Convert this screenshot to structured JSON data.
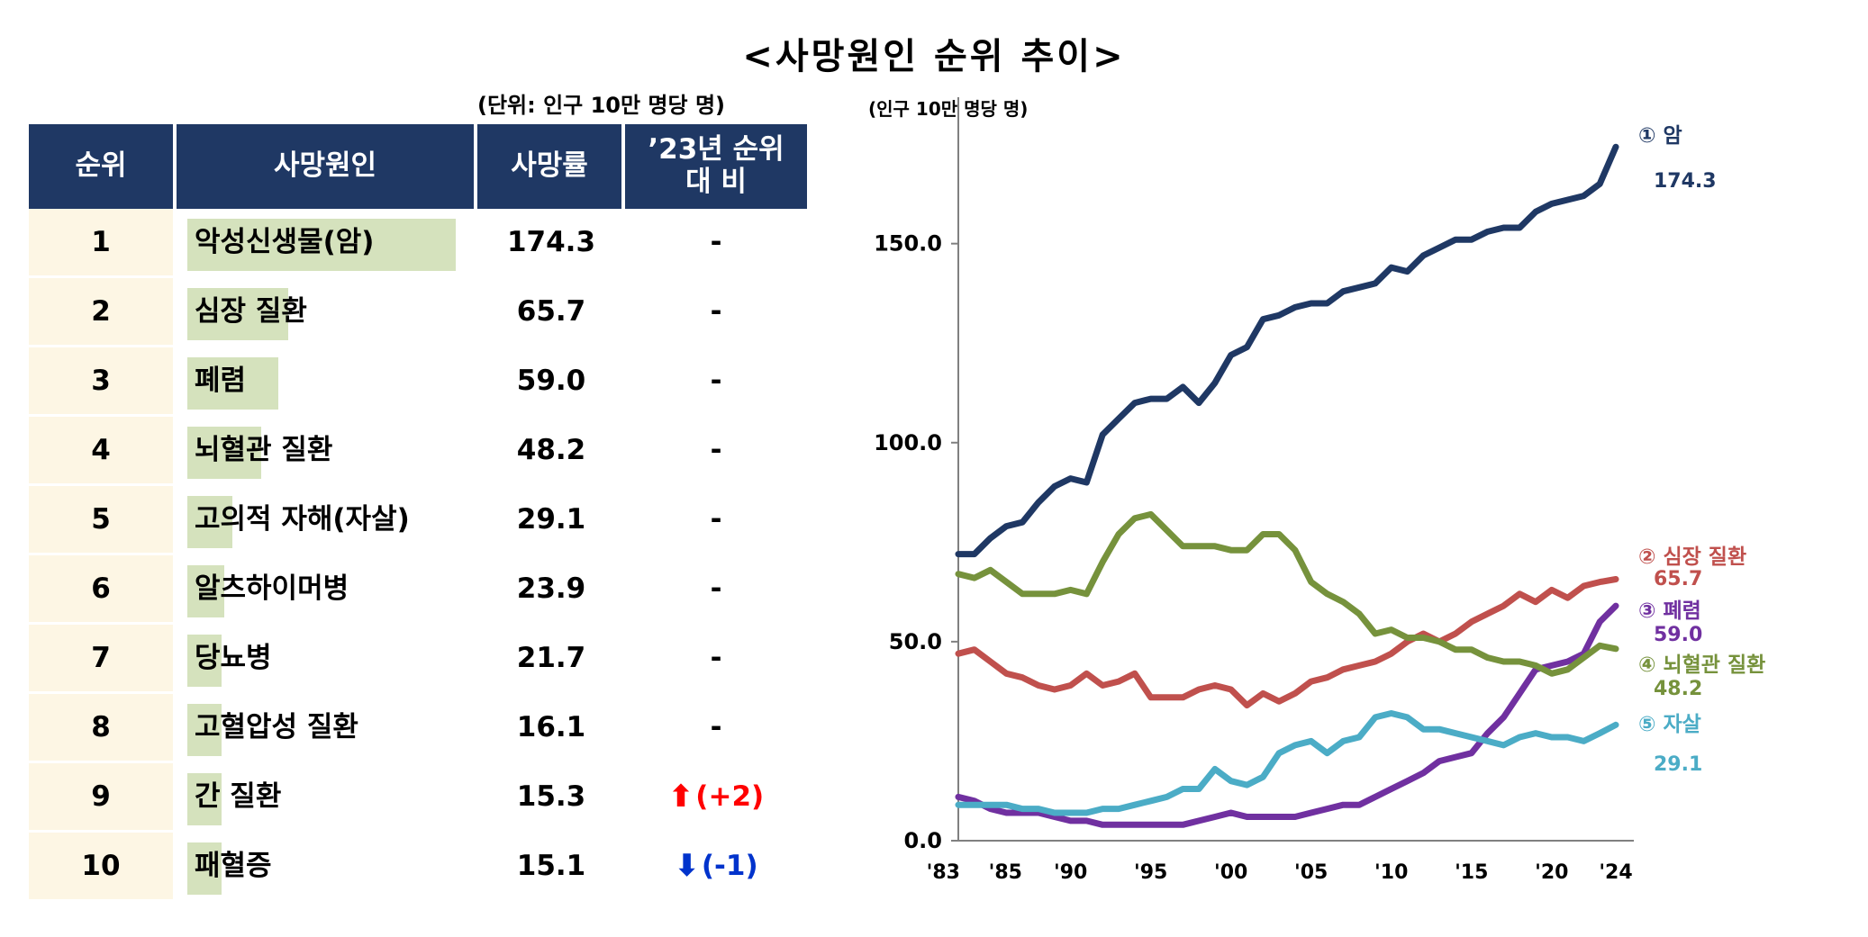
{
  "title": "<사망원인 순위 추이>",
  "table": {
    "unit_note": "(단위: 인구 10만 명당 명)",
    "headers": {
      "rank": "순위",
      "cause": "사망원인",
      "rate": "사망률",
      "compare_line1": "’23년 순위",
      "compare_line2": "대 비"
    },
    "max_rate": 174.3,
    "rows": [
      {
        "rank": "1",
        "cause": "악성신생물(암)",
        "rate": "174.3",
        "rate_value": 174.3,
        "change": "-",
        "direction": "none"
      },
      {
        "rank": "2",
        "cause": "심장 질환",
        "rate": "65.7",
        "rate_value": 65.7,
        "change": "-",
        "direction": "none"
      },
      {
        "rank": "3",
        "cause": "폐렴",
        "rate": "59.0",
        "rate_value": 59.0,
        "change": "-",
        "direction": "none"
      },
      {
        "rank": "4",
        "cause": "뇌혈관 질환",
        "rate": "48.2",
        "rate_value": 48.2,
        "change": "-",
        "direction": "none"
      },
      {
        "rank": "5",
        "cause": "고의적 자해(자살)",
        "rate": "29.1",
        "rate_value": 29.1,
        "change": "-",
        "direction": "none"
      },
      {
        "rank": "6",
        "cause": "알츠하이머병",
        "rate": "23.9",
        "rate_value": 23.9,
        "change": "-",
        "direction": "none"
      },
      {
        "rank": "7",
        "cause": "당뇨병",
        "rate": "21.7",
        "rate_value": 21.7,
        "change": "-",
        "direction": "none"
      },
      {
        "rank": "8",
        "cause": "고혈압성 질환",
        "rate": "16.1",
        "rate_value": 16.1,
        "change": "-",
        "direction": "none"
      },
      {
        "rank": "9",
        "cause": "간 질환",
        "rate": "15.3",
        "rate_value": 15.3,
        "change": "(+2)",
        "direction": "up"
      },
      {
        "rank": "10",
        "cause": "패혈증",
        "rate": "15.1",
        "rate_value": 15.1,
        "change": "(-1)",
        "direction": "down"
      }
    ]
  },
  "chart_data": {
    "type": "line",
    "title": "<사망원인 순위 추이>",
    "ylabel": "(인구 10만 명당 명)",
    "xlabel": "",
    "ylim": [
      0,
      180
    ],
    "xlim": [
      1983,
      2024
    ],
    "y_ticks": [
      0,
      50,
      100,
      150
    ],
    "y_tick_labels": [
      "0.0",
      "50.0",
      "100.0",
      "150.0"
    ],
    "x_ticks": [
      1983,
      1985,
      1990,
      1995,
      2000,
      2005,
      2010,
      2015,
      2020,
      2024
    ],
    "x_tick_labels": [
      "'83",
      "'85",
      "'90",
      "'95",
      "'00",
      "'05",
      "'10",
      "'15",
      "'20",
      "'24"
    ],
    "x": [
      1983,
      1984,
      1985,
      1986,
      1987,
      1988,
      1989,
      1990,
      1991,
      1992,
      1993,
      1994,
      1995,
      1996,
      1997,
      1998,
      1999,
      2000,
      2001,
      2002,
      2003,
      2004,
      2005,
      2006,
      2007,
      2008,
      2009,
      2010,
      2011,
      2012,
      2013,
      2014,
      2015,
      2016,
      2017,
      2018,
      2019,
      2020,
      2021,
      2022,
      2023,
      2024
    ],
    "series": [
      {
        "name": "① 암",
        "value_label": "174.3",
        "color": "#1f3864",
        "values": [
          72,
          72,
          76,
          79,
          80,
          85,
          89,
          91,
          90,
          102,
          106,
          110,
          111,
          111,
          114,
          110,
          115,
          122,
          124,
          131,
          132,
          134,
          135,
          135,
          138,
          139,
          140,
          144,
          143,
          147,
          149,
          151,
          151,
          153,
          154,
          154,
          158,
          160,
          161,
          162,
          165,
          174.3
        ]
      },
      {
        "name": "② 심장 질환",
        "value_label": "65.7",
        "color": "#c0504d",
        "values": [
          47,
          48,
          45,
          42,
          41,
          39,
          38,
          39,
          42,
          39,
          40,
          42,
          36,
          36,
          36,
          38,
          39,
          38,
          34,
          37,
          35,
          37,
          40,
          41,
          43,
          44,
          45,
          47,
          50,
          52,
          50,
          52,
          55,
          57,
          59,
          62,
          60,
          63,
          61,
          64,
          65,
          65.7
        ]
      },
      {
        "name": "③ 폐렴",
        "value_label": "59.0",
        "color": "#7030a0",
        "values": [
          11,
          10,
          8,
          7,
          7,
          7,
          6,
          5,
          5,
          4,
          4,
          4,
          4,
          4,
          4,
          5,
          6,
          7,
          6,
          6,
          6,
          6,
          7,
          8,
          9,
          9,
          11,
          13,
          15,
          17,
          20,
          21,
          22,
          27,
          31,
          37,
          43,
          44,
          45,
          47,
          55,
          59.0
        ]
      },
      {
        "name": "④ 뇌혈관 질환",
        "value_label": "48.2",
        "color": "#76923c",
        "values": [
          67,
          66,
          68,
          65,
          62,
          62,
          62,
          63,
          62,
          70,
          77,
          81,
          82,
          78,
          74,
          74,
          74,
          73,
          73,
          77,
          77,
          73,
          65,
          62,
          60,
          57,
          52,
          53,
          51,
          51,
          50,
          48,
          48,
          46,
          45,
          45,
          44,
          42,
          43,
          46,
          49,
          48.2
        ]
      },
      {
        "name": "⑤ 자살",
        "value_label": "29.1",
        "color": "#4bacc6",
        "values": [
          9,
          9,
          9,
          9,
          8,
          8,
          7,
          7,
          7,
          8,
          8,
          9,
          10,
          11,
          13,
          13,
          18,
          15,
          14,
          16,
          22,
          24,
          25,
          22,
          25,
          26,
          31,
          32,
          31,
          28,
          28,
          27,
          26,
          25,
          24,
          26,
          27,
          26,
          26,
          25,
          27,
          29.1
        ]
      }
    ]
  }
}
